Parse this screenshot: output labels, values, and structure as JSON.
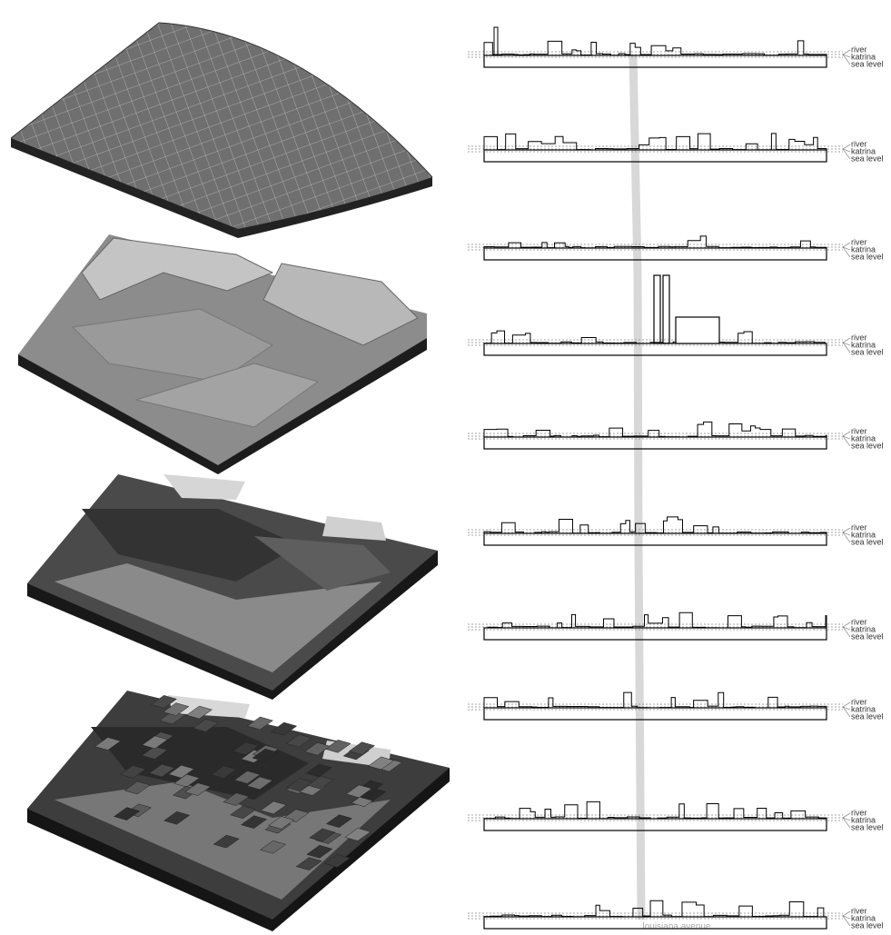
{
  "sections": [
    {
      "labels": [
        "river",
        "katrina",
        "sea level"
      ]
    },
    {
      "labels": [
        "river",
        "katrina",
        "sea level"
      ]
    },
    {
      "labels": [
        "river",
        "katrina",
        "sea level"
      ]
    },
    {
      "labels": [
        "river",
        "katrina",
        "sea level"
      ]
    },
    {
      "labels": [
        "river",
        "katrina",
        "sea level"
      ]
    },
    {
      "labels": [
        "river",
        "katrina",
        "sea level"
      ]
    },
    {
      "labels": [
        "river",
        "katrina",
        "sea level"
      ]
    },
    {
      "labels": [
        "river",
        "katrina",
        "sea level"
      ]
    },
    {
      "labels": [
        "river",
        "katrina",
        "sea level"
      ]
    },
    {
      "labels": [
        "river",
        "katrina",
        "sea level"
      ]
    }
  ],
  "street": "louisiana avenue"
}
